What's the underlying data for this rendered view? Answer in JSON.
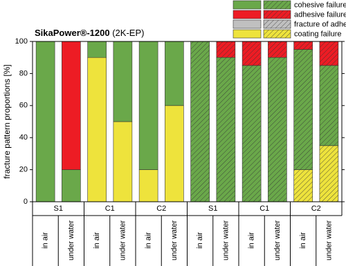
{
  "chart_data": {
    "type": "bar",
    "stacked": true,
    "title": "SikaPower®-1200",
    "subtitle": "(2K-EP)",
    "y_label": "fracture pattern proportions [%]",
    "groups": [
      {
        "name": "S1",
        "hatched": false,
        "categories": [
          "in air",
          "under water"
        ]
      },
      {
        "name": "C1",
        "hatched": false,
        "categories": [
          "in air",
          "under water"
        ]
      },
      {
        "name": "C2",
        "hatched": false,
        "categories": [
          "in air",
          "under water"
        ]
      },
      {
        "name": "S1",
        "hatched": true,
        "categories": [
          "in air",
          "under water"
        ]
      },
      {
        "name": "C1",
        "hatched": true,
        "categories": [
          "in air",
          "under water"
        ]
      },
      {
        "name": "C2",
        "hatched": true,
        "categories": [
          "in air",
          "under water"
        ]
      }
    ],
    "series": [
      {
        "name": "cohesive failure",
        "color": "#6aa84a",
        "values": [
          100,
          20,
          10,
          50,
          80,
          40,
          100,
          90,
          85,
          90,
          75,
          50
        ]
      },
      {
        "name": "adhesive failure",
        "color": "#ed1c24",
        "values": [
          0,
          80,
          0,
          0,
          0,
          0,
          0,
          10,
          15,
          10,
          5,
          15
        ]
      },
      {
        "name": "fracture of adherend",
        "color": "#c0c0c0",
        "values": [
          0,
          0,
          0,
          0,
          0,
          0,
          0,
          0,
          0,
          0,
          0,
          0
        ]
      },
      {
        "name": "coating failure",
        "color": "#eee33c",
        "values": [
          0,
          0,
          90,
          50,
          20,
          60,
          0,
          0,
          0,
          0,
          20,
          35
        ]
      }
    ],
    "stack_order": [
      3,
      2,
      0,
      1
    ],
    "ylim": [
      0,
      100
    ],
    "yticks": [
      0,
      20,
      40,
      60,
      80,
      100
    ]
  }
}
